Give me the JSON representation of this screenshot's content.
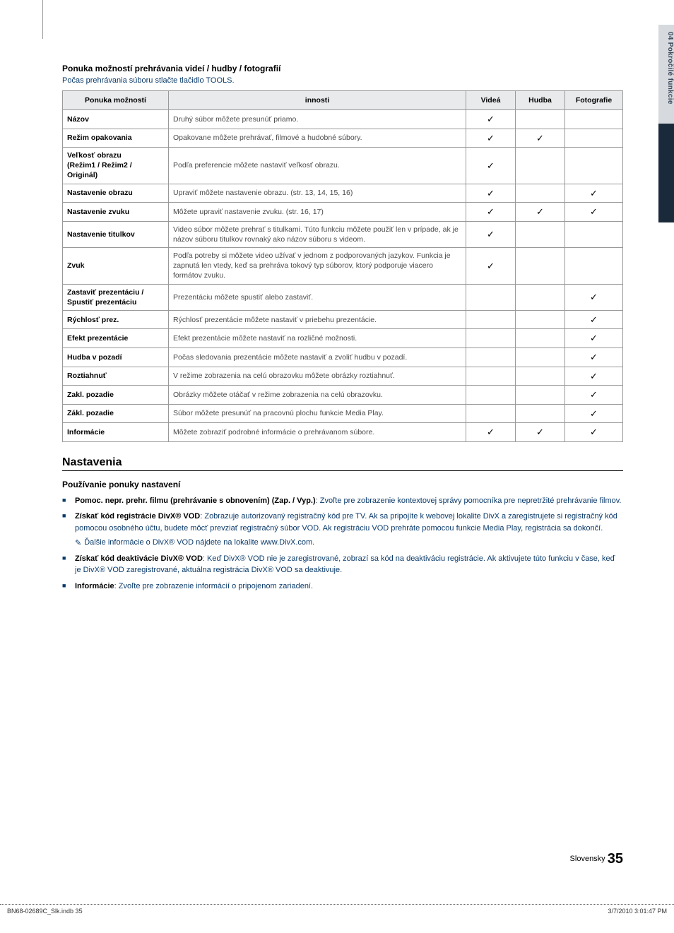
{
  "sideTab": {
    "text": "04  Pokročilé funkcie"
  },
  "sectionTitle": "Ponuka možností prehrávania videí / hudby / fotografií",
  "introLine": "Počas prehrávania súboru stlačte tlačidlo TOOLS.",
  "table": {
    "headers": {
      "menu": "Ponuka možností",
      "desc": "innosti",
      "video": "Videá",
      "hudba": "Hudba",
      "foto": "Fotografie"
    },
    "rows": [
      {
        "label": "Názov",
        "desc": "Druhý súbor môžete presunúť priamo.",
        "v": "✓",
        "h": "",
        "f": ""
      },
      {
        "label": "Režim opakovania",
        "desc": "Opakovane môžete prehrávať, filmové a hudobné súbory.",
        "v": "✓",
        "h": "✓",
        "f": ""
      },
      {
        "label": "Veľkosť obrazu\n(Režim1 / Režim2 / Originál)",
        "desc": "Podľa preferencie môžete nastaviť veľkosť obrazu.",
        "v": "✓",
        "h": "",
        "f": ""
      },
      {
        "label": "Nastavenie obrazu",
        "desc": "Upraviť môžete nastavenie obrazu. (str. 13, 14, 15, 16)",
        "v": "✓",
        "h": "",
        "f": "✓"
      },
      {
        "label": "Nastavenie zvuku",
        "desc": "Môžete upraviť nastavenie zvuku. (str. 16, 17)",
        "v": "✓",
        "h": "✓",
        "f": "✓"
      },
      {
        "label": "Nastavenie titulkov",
        "desc": "Video súbor môžete prehrať s titulkami. Túto funkciu môžete použiť len v prípade, ak je názov súboru titulkov rovnaký ako názov súboru s videom.",
        "v": "✓",
        "h": "",
        "f": ""
      },
      {
        "label": "Zvuk",
        "desc": "Podľa potreby si môžete video užívať v jednom z podporovaných jazykov. Funkcia je zapnutá len vtedy, keď sa prehráva tokový typ súborov, ktorý podporuje viacero formátov zvuku.",
        "v": "✓",
        "h": "",
        "f": ""
      },
      {
        "label": "Zastaviť prezentáciu /\nSpustiť prezentáciu",
        "desc": "Prezentáciu môžete spustiť alebo zastaviť.",
        "v": "",
        "h": "",
        "f": "✓"
      },
      {
        "label": "Rýchlosť prez.",
        "desc": "Rýchlosť prezentácie môžete nastaviť v priebehu prezentácie.",
        "v": "",
        "h": "",
        "f": "✓"
      },
      {
        "label": "Efekt prezentácie",
        "desc": "Efekt prezentácie môžete nastaviť na rozličné možnosti.",
        "v": "",
        "h": "",
        "f": "✓"
      },
      {
        "label": "Hudba v pozadí",
        "desc": "Počas sledovania prezentácie môžete nastaviť a zvoliť hudbu v pozadí.",
        "v": "",
        "h": "",
        "f": "✓"
      },
      {
        "label": "Roztiahnuť",
        "desc": "V režime zobrazenia na celú obrazovku môžete obrázky roztiahnuť.",
        "v": "",
        "h": "",
        "f": "✓"
      },
      {
        "label": "Zakl. pozadie",
        "desc": "Obrázky môžete otáčať v režime zobrazenia na celú obrazovku.",
        "v": "",
        "h": "",
        "f": "✓"
      },
      {
        "label": "Zákl. pozadie",
        "desc": "Súbor môžete presunúť na pracovnú plochu funkcie Media Play.",
        "v": "",
        "h": "",
        "f": "✓"
      },
      {
        "label": "Informácie",
        "desc": "Môžete zobraziť podrobné informácie o prehrávanom súbore.",
        "v": "✓",
        "h": "✓",
        "f": "✓"
      }
    ]
  },
  "h2": "Nastavenia",
  "subhead": "Používanie ponuky nastavení",
  "bullets": [
    {
      "bold": "Pomoc. nepr. prehr. filmu (prehrávanie s obnovením) (Zap. / Vyp.)",
      "rest": ": Zvoľte pre zobrazenie kontextovej správy pomocníka pre nepretržité prehrávanie filmov."
    },
    {
      "bold": "Získať kód registrácie DivX® VOD",
      "rest": ": Zobrazuje autorizovaný registračný kód pre TV. Ak sa pripojíte k webovej lokalite DivX a zaregistrujete si registračný kód pomocou osobného účtu, budete môcť prevziať registračný súbor VOD. Ak registráciu VOD prehráte pomocou funkcie Media Play, registrácia sa dokončí."
    }
  ],
  "note": "Ďalšie informácie o DivX® VOD nájdete na lokalite www.DivX.com.",
  "bullets2": [
    {
      "bold": "Získať kód deaktivácie DivX® VOD",
      "rest": ": Keď DivX® VOD nie je zaregistrované, zobrazí sa kód na deaktiváciu registrácie. Ak aktivujete túto funkciu v čase, keď je DivX® VOD zaregistrované, aktuálna registrácia DivX® VOD sa deaktivuje."
    },
    {
      "bold": "Informácie",
      "rest": ": Zvoľte pre zobrazenie informácií o pripojenom zariadení."
    }
  ],
  "footer": {
    "lang": "Slovensky",
    "page": "35"
  },
  "docFooter": {
    "left": "BN68-02689C_Slk.indb   35",
    "right": "3/7/2010   3:01:47 PM"
  }
}
